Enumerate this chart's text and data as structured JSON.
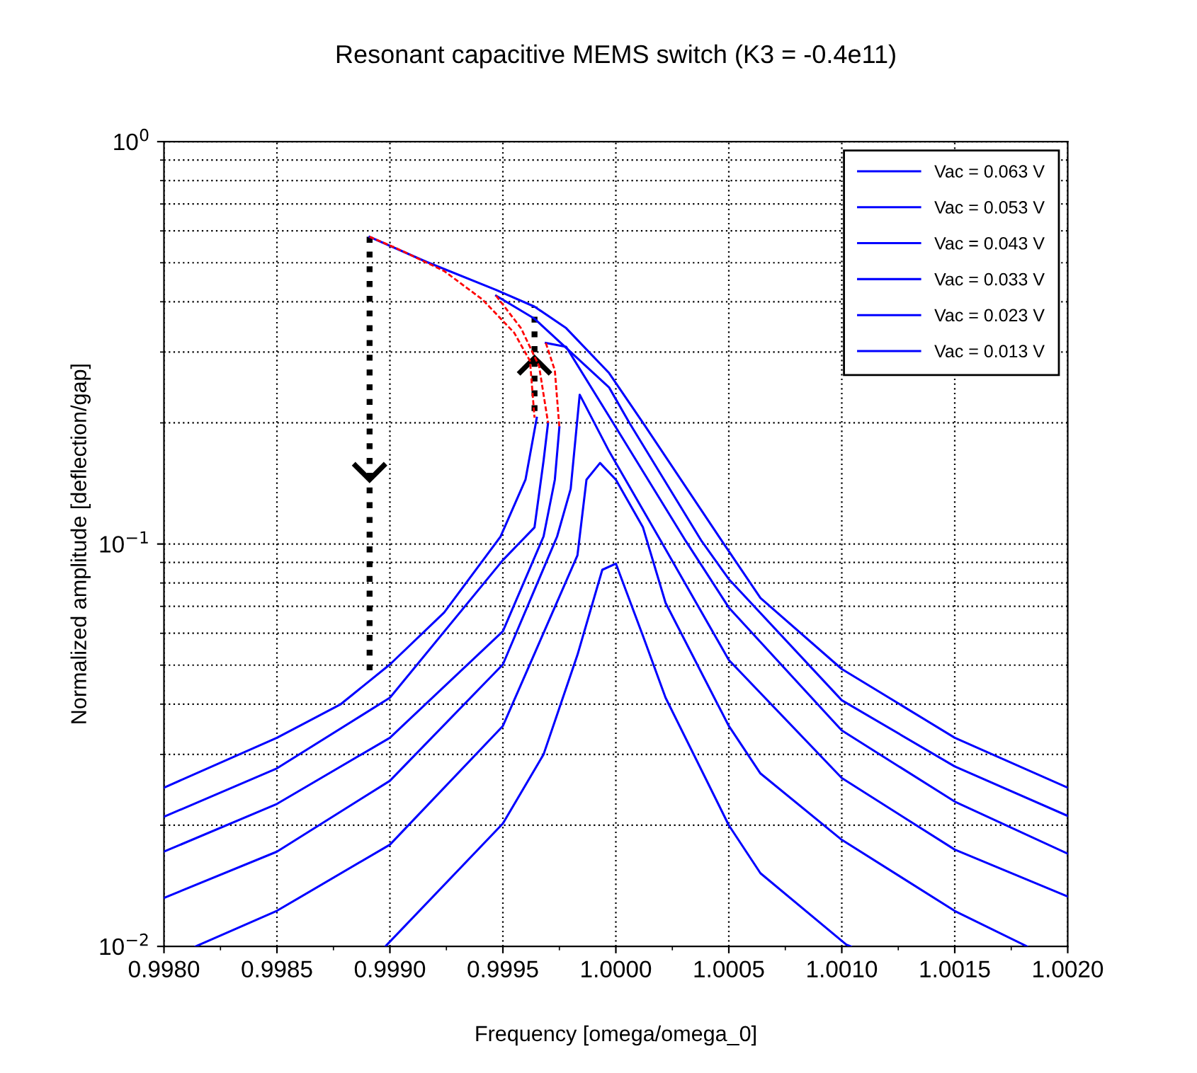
{
  "chart_data": {
    "type": "line",
    "title": "Resonant capacitive MEMS switch (K3 = -0.4e11)",
    "xlabel": "Frequency [omega/omega_0]",
    "ylabel": "Normalized amplitude [deflection/gap]",
    "log": "y",
    "grid": true,
    "legend": "top right",
    "marker": "none",
    "xlim": [
      0.998,
      1.002
    ],
    "xticks": [
      {
        "value": 0.998,
        "label": "0.9980"
      },
      {
        "value": 0.9985,
        "label": "0.9985"
      },
      {
        "value": 0.999,
        "label": "0.9990"
      },
      {
        "value": 0.9995,
        "label": "0.9995"
      },
      {
        "value": 1.0,
        "label": "1.0000"
      },
      {
        "value": 1.0005,
        "label": "1.0005"
      },
      {
        "value": 1.001,
        "label": "1.0010"
      },
      {
        "value": 1.0015,
        "label": "1.0015"
      },
      {
        "value": 1.002,
        "label": "1.0020"
      }
    ],
    "ylim": [
      0.01,
      1
    ],
    "yticks": [
      {
        "value": 0.01,
        "label": "10$^{−2}$"
      },
      {
        "value": 0.1,
        "label": "10$^{−1}$"
      },
      {
        "value": 1,
        "label": "10$^{0}$"
      }
    ],
    "series": [
      {
        "name": "Vac = 0.063 V",
        "color": "#0000ff",
        "line_style": "solid",
        "x": [
          0.998,
          0.9985,
          0.99878,
          0.999,
          0.99924,
          0.99949,
          0.9996,
          0.99965,
          null,
          0.99891,
          0.99916,
          0.99947,
          0.99964,
          0.99978,
          0.99997,
          1.00012,
          1.00047,
          1.00064,
          1.001,
          1.0015,
          1.002
        ],
        "values": [
          0.0248,
          0.033,
          0.0399,
          0.0502,
          0.0676,
          0.1044,
          0.1445,
          0.206,
          null,
          0.58,
          0.503,
          0.428,
          0.389,
          0.344,
          0.266,
          0.2,
          0.1016,
          0.0734,
          0.0489,
          0.033,
          0.0248
        ]
      },
      {
        "name": "Vac = 0.053 V",
        "color": "#0000ff",
        "line_style": "solid",
        "x": [
          0.998,
          0.9985,
          0.999,
          0.9995,
          0.99964,
          0.99968,
          0.9997,
          null,
          0.99947,
          0.99964,
          0.99997,
          1.00006,
          1.00038,
          1.0005,
          1.001,
          1.0015,
          1.002
        ],
        "values": [
          0.021,
          0.0277,
          0.0415,
          0.0912,
          0.11,
          0.161,
          0.2,
          null,
          0.414,
          0.363,
          0.245,
          0.2,
          0.1016,
          0.0818,
          0.0409,
          0.028,
          0.0211
        ]
      },
      {
        "name": "Vac = 0.043 V",
        "color": "#0000ff",
        "line_style": "solid",
        "x": [
          0.998,
          0.9985,
          0.999,
          0.9995,
          0.99968,
          0.99973,
          0.99975,
          null,
          0.99969,
          0.99978,
          1.0,
          1.00031,
          1.0005,
          1.001,
          1.0015,
          1.002
        ],
        "values": [
          0.0172,
          0.0226,
          0.033,
          0.0607,
          0.1044,
          0.1445,
          0.195,
          null,
          0.316,
          0.309,
          0.195,
          0.1016,
          0.0695,
          0.0344,
          0.0229,
          0.017
        ]
      },
      {
        "name": "Vac = 0.033 V",
        "color": "#0000ff",
        "line_style": "solid",
        "x": [
          0.998,
          0.9985,
          0.999,
          0.9995,
          0.99974,
          0.9998,
          0.99984,
          0.99997,
          1.0002,
          1.0005,
          1.001,
          1.0015,
          1.002
        ],
        "values": [
          0.0132,
          0.0172,
          0.0258,
          0.0502,
          0.1044,
          0.137,
          0.235,
          0.17,
          0.1016,
          0.0515,
          0.0262,
          0.0174,
          0.0133
        ]
      },
      {
        "name": "Vac = 0.023 V",
        "color": "#0000ff",
        "line_style": "solid",
        "x": [
          0.99814,
          0.9985,
          0.999,
          0.9995,
          0.99983,
          0.99987,
          0.99993,
          1.0,
          1.00012,
          1.00022,
          1.0005,
          1.00064,
          1.001,
          1.0015,
          1.00182
        ],
        "values": [
          0.01,
          0.01226,
          0.0179,
          0.0353,
          0.0937,
          0.1445,
          0.159,
          0.1445,
          0.11,
          0.0714,
          0.0353,
          0.0269,
          0.0184,
          0.01225,
          0.01
        ]
      },
      {
        "name": "Vac = 0.013 V",
        "color": "#0000ff",
        "line_style": "solid",
        "x": [
          0.99898,
          0.9995,
          0.99968,
          0.99983,
          0.99994,
          1.0,
          1.00012,
          1.00022,
          1.0005,
          1.00064,
          1.00102,
          1.00104
        ],
        "values": [
          0.01,
          0.0202,
          0.03,
          0.053,
          0.0863,
          0.0894,
          0.0591,
          0.0415,
          0.02,
          0.0152,
          0.0101,
          0.01
        ]
      },
      {
        "color": "#ff0000",
        "line_style": "dashed",
        "x": [
          0.99891,
          0.99903,
          0.99924,
          0.99941,
          0.99955,
          0.99962,
          0.99964
        ],
        "values": [
          0.58,
          0.543,
          0.477,
          0.405,
          0.335,
          0.285,
          0.206
        ]
      },
      {
        "color": "#ff0000",
        "line_style": "dashed",
        "x": [
          0.99947,
          0.99958,
          0.99966,
          0.9997
        ],
        "values": [
          0.414,
          0.344,
          0.277,
          0.2
        ]
      },
      {
        "color": "#ff0000",
        "line_style": "dashed",
        "x": [
          0.99969,
          0.99973,
          0.99975
        ],
        "values": [
          0.316,
          0.27,
          0.195
        ]
      },
      {
        "color": "#000000",
        "line_style": "dotted",
        "x": [
          0.99891,
          0.99891,
          0.99891
        ],
        "values": [
          0.58,
          0.1445,
          0.0469
        ]
      },
      {
        "color": "#000000",
        "line_style": "dotted",
        "x": [
          0.99964,
          0.99964,
          0.99964
        ],
        "values": [
          0.214,
          0.29,
          0.389
        ]
      }
    ]
  }
}
